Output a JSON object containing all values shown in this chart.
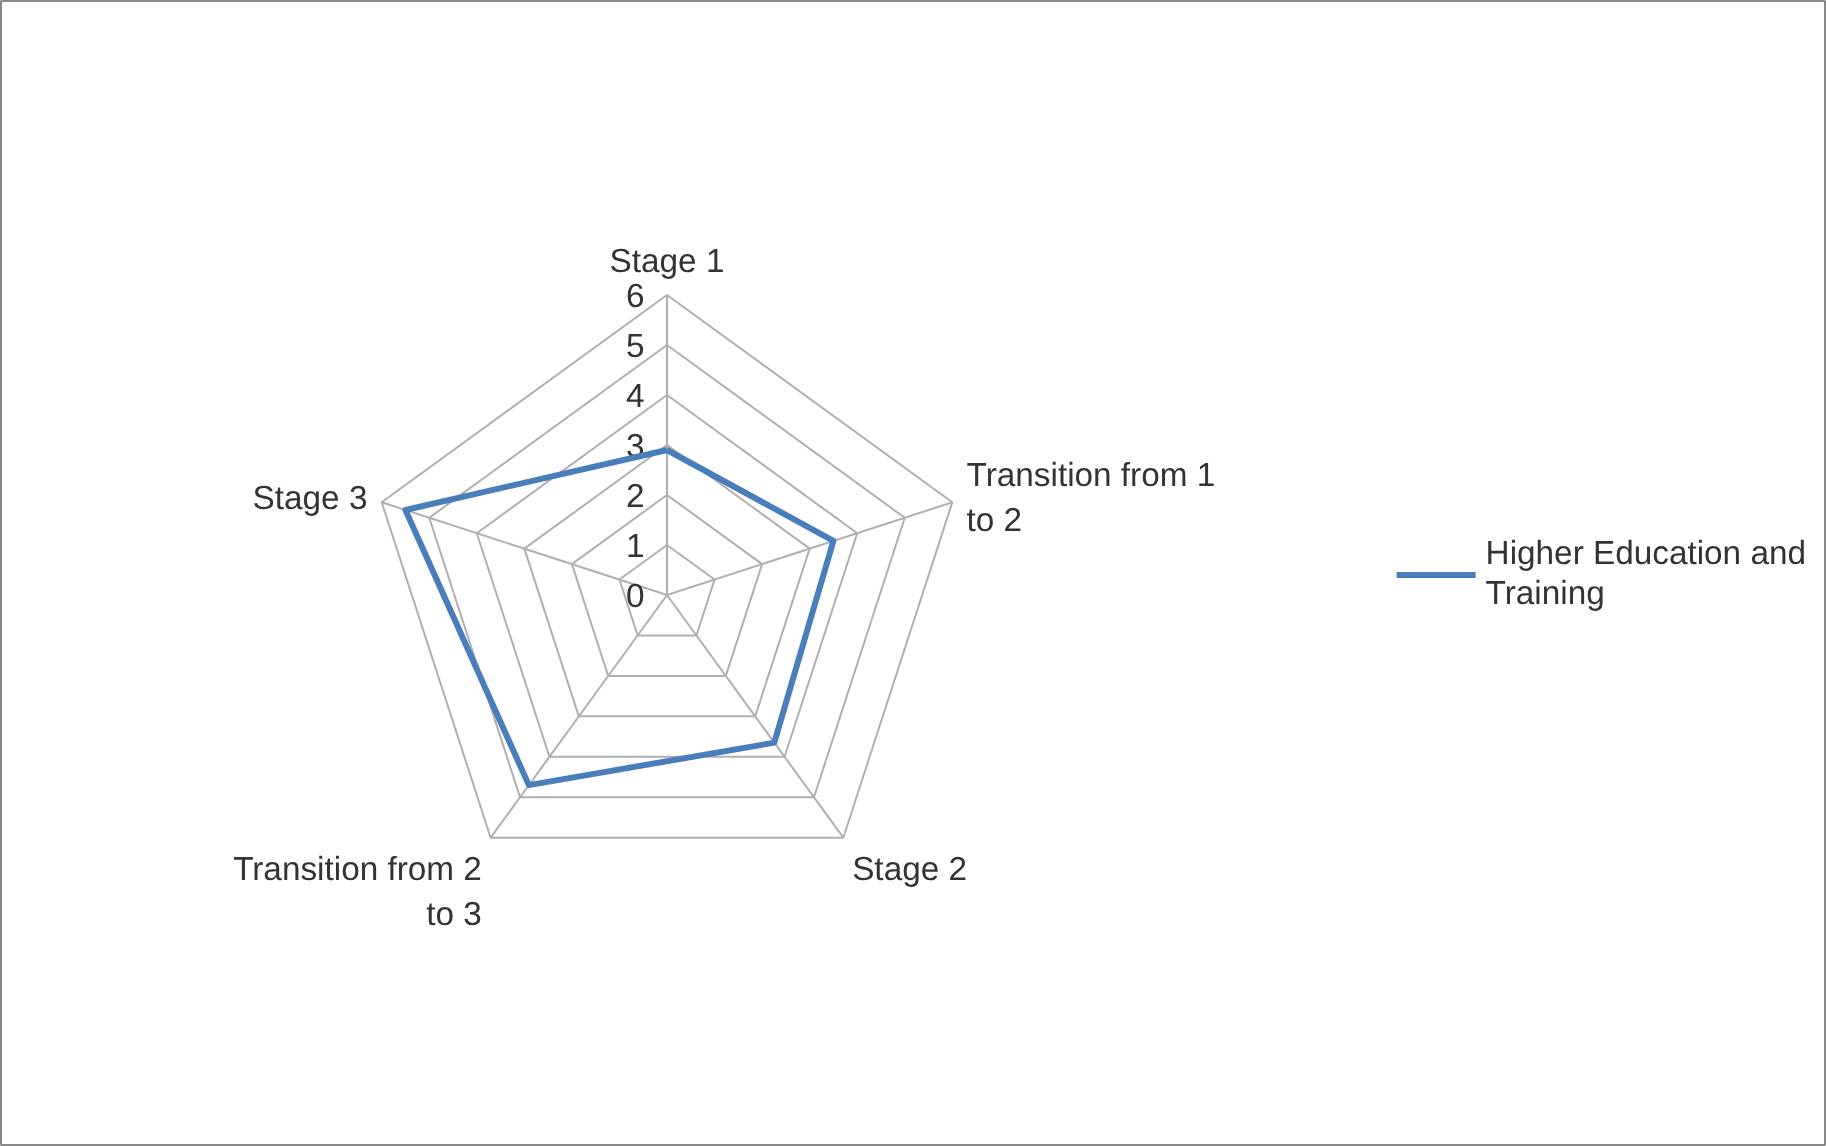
{
  "chart_data": {
    "type": "radar",
    "categories": [
      "Stage 1",
      "Transition from 1 to 2",
      "Stage 2",
      "Transition from 2 to 3",
      "Stage 3"
    ],
    "series": [
      {
        "name": "Higher Education and Training",
        "color": "#4a7ebb",
        "values": [
          2.9,
          3.5,
          3.65,
          4.7,
          5.5
        ]
      }
    ],
    "ylim": [
      0,
      6
    ],
    "yticks": [
      0,
      1,
      2,
      3,
      4,
      5,
      6
    ],
    "grid": true,
    "legend": "right",
    "marker": "none",
    "line_style": "solid"
  }
}
